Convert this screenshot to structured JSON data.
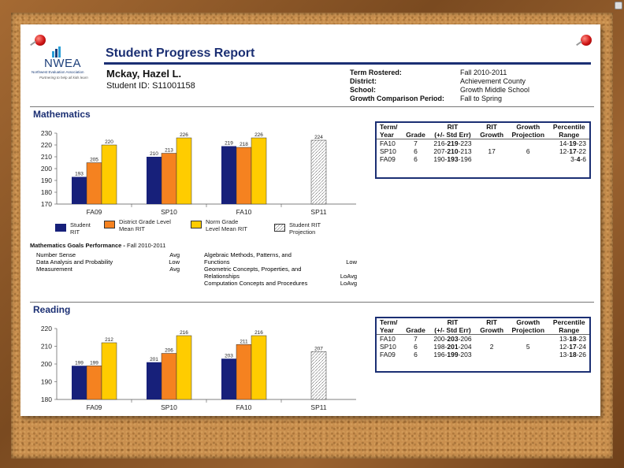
{
  "report": {
    "title": "Student Progress Report",
    "logo_text": "NWEA",
    "logo_sub": "Northwest Evaluation Association",
    "logo_tagline": "Partnering to help all kids learn",
    "student_name": "Mckay, Hazel L.",
    "student_id": "Student ID: S11001158",
    "meta": [
      {
        "key": "Term Rostered:",
        "value": "Fall 2010-2011"
      },
      {
        "key": "District:",
        "value": "Achievement County"
      },
      {
        "key": "School:",
        "value": "Growth Middle School"
      },
      {
        "key": "Growth Comparison Period:",
        "value": "Fall to Spring"
      }
    ]
  },
  "table_headers": {
    "term": [
      "Term/",
      "Year"
    ],
    "grade": "Grade",
    "rit": [
      "RIT",
      "(+/- Std Err)"
    ],
    "rit_growth": [
      "RIT",
      "Growth"
    ],
    "growth_proj": [
      "Growth",
      "Projection"
    ],
    "percentile": [
      "Percentile",
      "Range"
    ]
  },
  "math": {
    "section": "Mathematics",
    "table": [
      {
        "term": "FA10",
        "grade": "7",
        "rit_lo": "216-",
        "rit": "219",
        "rit_hi": "-223",
        "growth": "",
        "proj": "",
        "pct_lo": "14-",
        "pct": "19",
        "pct_hi": "-23"
      },
      {
        "term": "SP10",
        "grade": "6",
        "rit_lo": "207-",
        "rit": "210",
        "rit_hi": "-213",
        "growth": "17",
        "proj": "6",
        "pct_lo": "12-",
        "pct": "17",
        "pct_hi": "-22"
      },
      {
        "term": "FA09",
        "grade": "6",
        "rit_lo": "190-",
        "rit": "193",
        "rit_hi": "-196",
        "growth": "",
        "proj": "",
        "pct_lo": "3-",
        "pct": "4",
        "pct_hi": "-6"
      }
    ],
    "goals_title": "Mathematics Goals Performance -",
    "goals_term": "Fall 2010-2011",
    "goals_left": [
      {
        "name": "Number Sense",
        "level": "Avg"
      },
      {
        "name": "Data Analysis and Probability",
        "level": "Low"
      },
      {
        "name": "Measurement",
        "level": "Avg"
      }
    ],
    "goals_right": [
      {
        "name": "Algebraic Methods, Patterns, and Functions",
        "level": "Low"
      },
      {
        "name": "Geometric Concepts, Properties, and Relationships",
        "level": "LoAvg"
      },
      {
        "name": "Computation Concepts and Procedures",
        "level": "LoAvg"
      }
    ]
  },
  "reading": {
    "section": "Reading",
    "table": [
      {
        "term": "FA10",
        "grade": "7",
        "rit_lo": "200-",
        "rit": "203",
        "rit_hi": "-206",
        "growth": "",
        "proj": "",
        "pct_lo": "13-",
        "pct": "18",
        "pct_hi": "-23"
      },
      {
        "term": "SP10",
        "grade": "6",
        "rit_lo": "198-",
        "rit": "201",
        "rit_hi": "-204",
        "growth": "2",
        "proj": "5",
        "pct_lo": "12-",
        "pct": "17",
        "pct_hi": "-24"
      },
      {
        "term": "FA09",
        "grade": "6",
        "rit_lo": "196-",
        "rit": "199",
        "rit_hi": "-203",
        "growth": "",
        "proj": "",
        "pct_lo": "13-",
        "pct": "18",
        "pct_hi": "-26"
      }
    ]
  },
  "legend": [
    {
      "label": "Student RIT",
      "color": "#17207a",
      "pattern": false
    },
    {
      "label": "District Grade Level Mean RIT",
      "color": "#f58220",
      "pattern": false
    },
    {
      "label": "Norm Grade Level Mean RIT",
      "color": "#ffcc00",
      "pattern": false
    },
    {
      "label": "Student RIT Projection",
      "color": "#ffffff",
      "pattern": true
    }
  ],
  "chart_data": [
    {
      "type": "bar",
      "categories": [
        "FA09",
        "SP10",
        "FA10",
        "SP11"
      ],
      "series": [
        {
          "name": "Student RIT",
          "values": [
            193,
            210,
            219,
            null
          ]
        },
        {
          "name": "District Grade Level Mean RIT",
          "values": [
            205,
            213,
            218,
            null
          ]
        },
        {
          "name": "Norm Grade Level Mean RIT",
          "values": [
            220,
            226,
            226,
            null
          ]
        },
        {
          "name": "Student RIT Projection",
          "values": [
            null,
            null,
            null,
            224
          ]
        }
      ],
      "yticks": [
        170,
        180,
        190,
        200,
        210,
        220,
        230
      ],
      "ylim": [
        170,
        230
      ],
      "colors": [
        "#17207a",
        "#f58220",
        "#ffcc00",
        "#ffffff"
      ]
    },
    {
      "type": "bar",
      "categories": [
        "FA09",
        "SP10",
        "FA10",
        "SP11"
      ],
      "series": [
        {
          "name": "Student RIT",
          "values": [
            199,
            201,
            203,
            null
          ]
        },
        {
          "name": "District Grade Level Mean RIT",
          "values": [
            199,
            206,
            211,
            null
          ]
        },
        {
          "name": "Norm Grade Level Mean RIT",
          "values": [
            212,
            216,
            216,
            null
          ]
        },
        {
          "name": "Student RIT Projection",
          "values": [
            null,
            null,
            null,
            207
          ]
        }
      ],
      "yticks": [
        180,
        190,
        200,
        210,
        220
      ],
      "ylim": [
        180,
        220
      ],
      "colors": [
        "#17207a",
        "#f58220",
        "#ffcc00",
        "#ffffff"
      ]
    }
  ]
}
